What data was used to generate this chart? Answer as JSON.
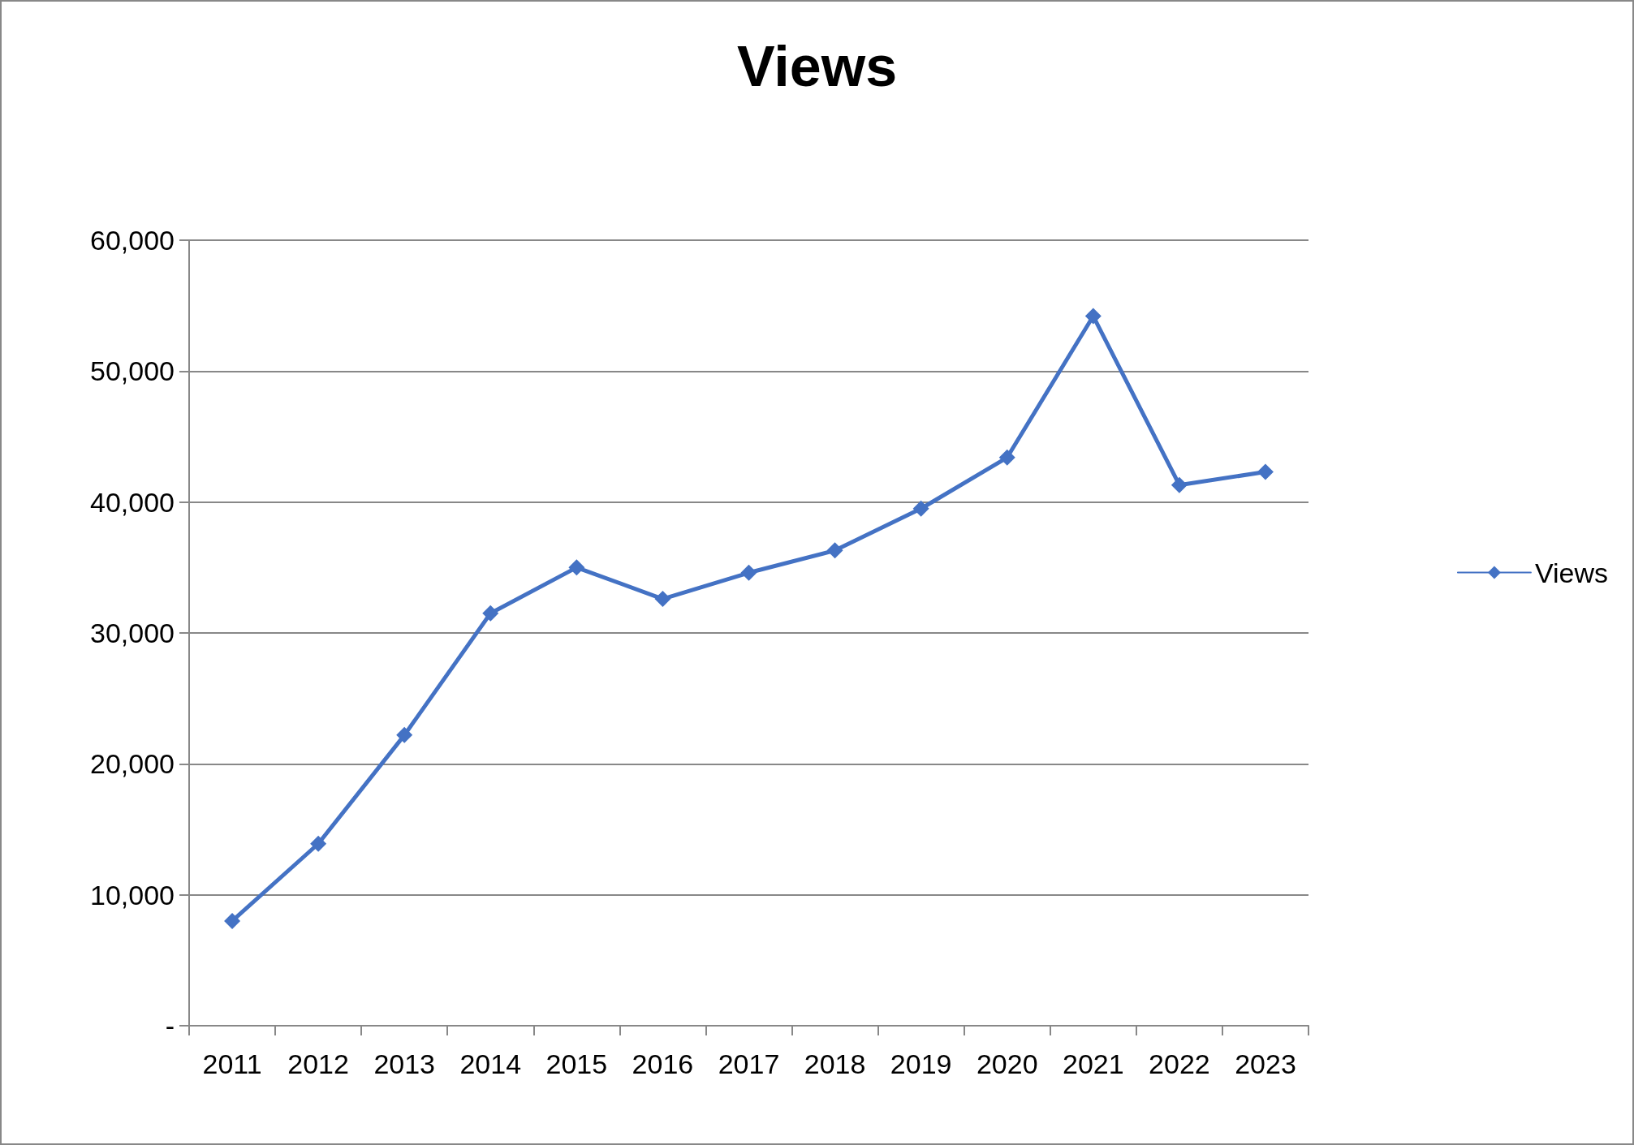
{
  "chart_data": {
    "type": "line",
    "title": "Views",
    "categories": [
      "2011",
      "2012",
      "2013",
      "2014",
      "2015",
      "2016",
      "2017",
      "2018",
      "2019",
      "2020",
      "2021",
      "2022",
      "2023"
    ],
    "series": [
      {
        "name": "Views",
        "color": "#4472c4",
        "values": [
          8000,
          13900,
          22200,
          31500,
          35000,
          32600,
          34600,
          36300,
          39500,
          43400,
          54200,
          41300,
          42300
        ]
      }
    ],
    "ylim": [
      0,
      60000
    ],
    "yticks": [
      {
        "value": 0,
        "label": "-"
      },
      {
        "value": 10000,
        "label": "10,000"
      },
      {
        "value": 20000,
        "label": "20,000"
      },
      {
        "value": 30000,
        "label": "30,000"
      },
      {
        "value": 40000,
        "label": "40,000"
      },
      {
        "value": 50000,
        "label": "50,000"
      },
      {
        "value": 60000,
        "label": "60,000"
      }
    ],
    "grid": "y",
    "legend": "right",
    "marker": "diamond",
    "line_style": "solid"
  }
}
